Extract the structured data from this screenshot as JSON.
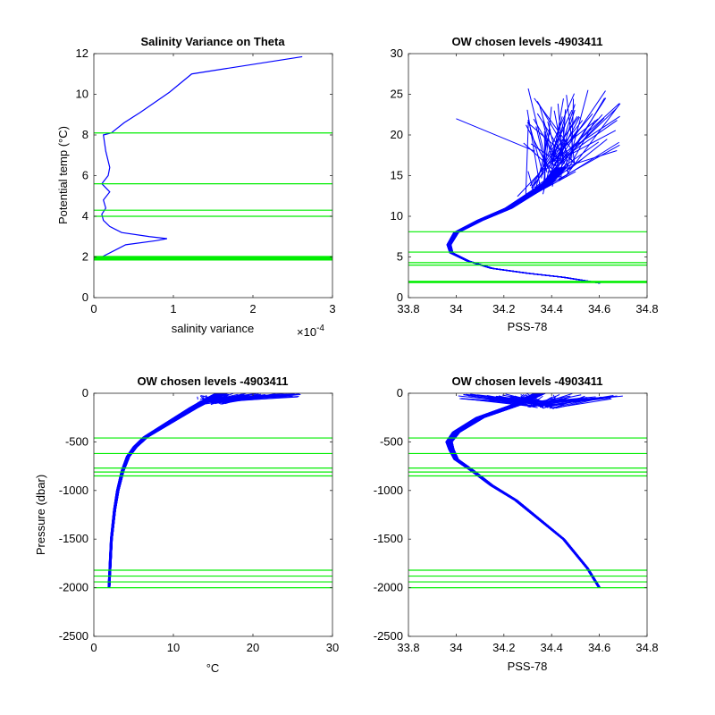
{
  "figure": {
    "background": "#ffffff"
  },
  "chart_data": [
    {
      "type": "line",
      "title": "Salinity Variance on Theta",
      "xlabel": "salinity variance",
      "ylabel": "Potential temp (°C)",
      "x_exponent_label": "×10",
      "x_exponent_power": "-4",
      "xlim": [
        0,
        3
      ],
      "ylim": [
        0,
        12
      ],
      "xticks": [
        "0",
        "1",
        "2",
        "3"
      ],
      "yticks": [
        "0",
        "2",
        "4",
        "6",
        "8",
        "10",
        "12"
      ],
      "series": [
        {
          "color": "#0000ff",
          "x": [
            2.62,
            1.23,
            0.95,
            0.58,
            0.38,
            0.22,
            0.12,
            0.15,
            0.2,
            0.18,
            0.1,
            0.2,
            0.12,
            0.15,
            0.1,
            0.12,
            0.2,
            0.35,
            0.7,
            0.92,
            0.78,
            0.4,
            0.25,
            0.1,
            0.15
          ],
          "y": [
            11.85,
            11.0,
            10.1,
            9.1,
            8.6,
            8.1,
            8.0,
            7.2,
            6.4,
            6.0,
            5.6,
            5.2,
            4.8,
            4.4,
            4.1,
            3.8,
            3.5,
            3.2,
            3.0,
            2.9,
            2.8,
            2.6,
            2.3,
            2.0,
            1.95
          ]
        }
      ],
      "hlines": [
        8.1,
        5.6,
        4.3,
        4.0,
        2.0,
        1.85
      ],
      "hline_color": "#00ee00"
    },
    {
      "type": "line",
      "title": "OW chosen levels -4903411",
      "xlabel": "PSS-78",
      "ylabel": "",
      "xlim": [
        33.8,
        34.8
      ],
      "ylim": [
        0,
        30
      ],
      "xticks": [
        "33.8",
        "34",
        "34.2",
        "34.4",
        "34.6",
        "34.8"
      ],
      "yticks": [
        "0",
        "5",
        "10",
        "15",
        "20",
        "25",
        "30"
      ],
      "mean_profile": {
        "x": [
          34.6,
          34.45,
          34.3,
          34.15,
          34.05,
          33.98,
          33.97,
          34.0,
          34.1,
          34.22,
          34.3,
          34.38,
          34.44
        ],
        "y": [
          1.8,
          2.5,
          3.0,
          3.6,
          4.5,
          5.5,
          6.5,
          8.0,
          9.5,
          11.0,
          12.5,
          14.0,
          16.0
        ]
      },
      "surface_spread": "many near-surface profiles spread between PSS-78 34.2 and 34.7 at temperatures 12 to 26 °C",
      "series_color": "#0000ff",
      "hlines": [
        8.1,
        5.6,
        4.3,
        4.0,
        2.0,
        1.85
      ],
      "hline_color": "#00ee00"
    },
    {
      "type": "line",
      "title": "OW chosen levels -4903411",
      "xlabel": "°C",
      "ylabel": "Pressure (dbar)",
      "xlim": [
        0,
        30
      ],
      "ylim": [
        -2500,
        0
      ],
      "xticks": [
        "0",
        "10",
        "20",
        "30"
      ],
      "yticks": [
        "-2500",
        "-2000",
        "-1500",
        "-1000",
        "-500",
        "0"
      ],
      "mean_profile": {
        "x": [
          1.9,
          2.2,
          2.6,
          3.0,
          3.6,
          4.3,
          5.2,
          6.5,
          8.5,
          10.5,
          12.5,
          14.5,
          16.0
        ],
        "y": [
          -2000,
          -1500,
          -1200,
          -1000,
          -800,
          -650,
          -550,
          -450,
          -350,
          -250,
          -150,
          -60,
          0
        ]
      },
      "surface_spread": "near-surface temperatures range from about 13 to 26 °C",
      "series_color": "#0000ff",
      "hlines": [
        -460,
        -620,
        -770,
        -810,
        -850,
        -1820,
        -1880,
        -1940,
        -2000
      ],
      "hline_color": "#00ee00"
    },
    {
      "type": "line",
      "title": "OW chosen levels -4903411",
      "xlabel": "PSS-78",
      "ylabel": "",
      "xlim": [
        33.8,
        34.8
      ],
      "ylim": [
        -2500,
        0
      ],
      "xticks": [
        "33.8",
        "34",
        "34.2",
        "34.4",
        "34.6",
        "34.8"
      ],
      "yticks": [
        "-2500",
        "-2000",
        "-1500",
        "-1000",
        "-500",
        "0"
      ],
      "mean_profile": {
        "x": [
          34.6,
          34.55,
          34.45,
          34.35,
          34.25,
          34.15,
          34.07,
          34.0,
          33.98,
          33.97,
          34.0,
          34.1,
          34.25,
          34.35
        ],
        "y": [
          -2000,
          -1800,
          -1500,
          -1300,
          -1100,
          -950,
          -800,
          -680,
          -580,
          -500,
          -400,
          -250,
          -120,
          0
        ]
      },
      "surface_spread": "near-surface salinity spreads from about 34.0 to 34.7 PSS-78",
      "series_color": "#0000ff",
      "hlines": [
        -460,
        -620,
        -770,
        -810,
        -850,
        -1820,
        -1880,
        -1940,
        -2000
      ],
      "hline_color": "#00ee00"
    }
  ]
}
